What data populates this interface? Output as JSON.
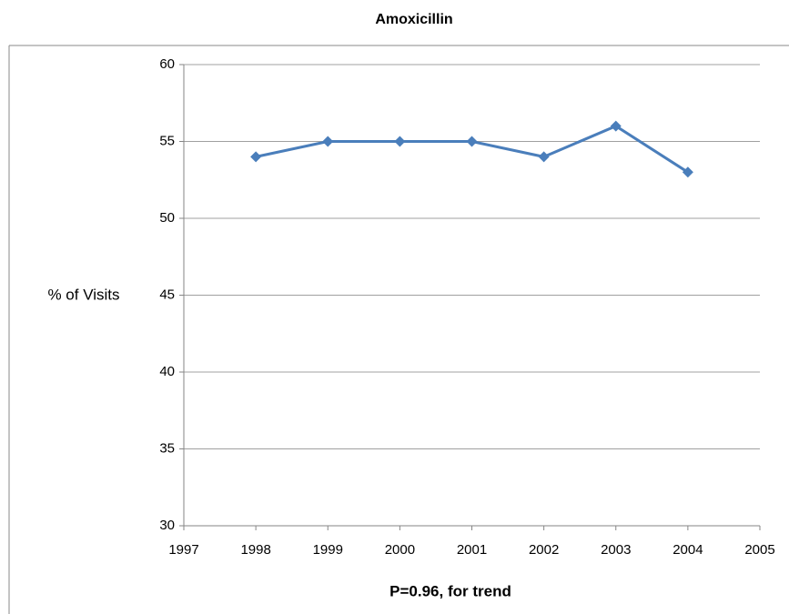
{
  "chart_data": {
    "type": "line",
    "title": "Amoxicillin",
    "ylabel": "% of Visits",
    "xlabel": "P=0.96, for trend",
    "x": [
      1998,
      1999,
      2000,
      2001,
      2002,
      2003,
      2004
    ],
    "series": [
      {
        "name": "Amoxicillin",
        "color": "#4a7ebb",
        "values": [
          54,
          55,
          55,
          55,
          54,
          56,
          53
        ]
      }
    ],
    "xlim": [
      1997,
      2005
    ],
    "xticks": [
      1997,
      1998,
      1999,
      2000,
      2001,
      2002,
      2003,
      2004,
      2005
    ],
    "ylim": [
      30,
      60
    ],
    "yticks": [
      30,
      35,
      40,
      45,
      50,
      55,
      60
    ],
    "grid": true
  }
}
